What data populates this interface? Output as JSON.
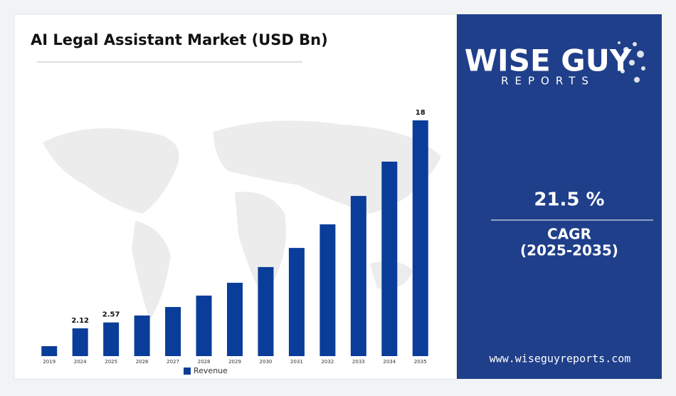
{
  "chart_data": {
    "type": "bar",
    "title": "AI Legal Assistant Market (USD Bn)",
    "categories": [
      "2019",
      "2024",
      "2025",
      "2026",
      "2027",
      "2028",
      "2029",
      "2030",
      "2031",
      "2032",
      "2033",
      "2034",
      "2035"
    ],
    "series": [
      {
        "name": "Revenue",
        "color": "#0a3d99",
        "values": [
          0.76,
          2.12,
          2.57,
          3.1,
          3.75,
          4.62,
          5.6,
          6.8,
          8.26,
          10.06,
          12.23,
          14.85,
          18
        ],
        "value_labels": [
          null,
          "2.12",
          "2.57",
          null,
          null,
          null,
          null,
          null,
          null,
          null,
          null,
          null,
          "18"
        ]
      }
    ],
    "legend": "bottom"
  },
  "brand": {
    "name": "WISE GUY",
    "sub": "REPORTS"
  },
  "cagr": {
    "value": "21.5 %",
    "label": "CAGR",
    "period": "(2025-2035)"
  },
  "website": "www.wiseguyreports.com"
}
